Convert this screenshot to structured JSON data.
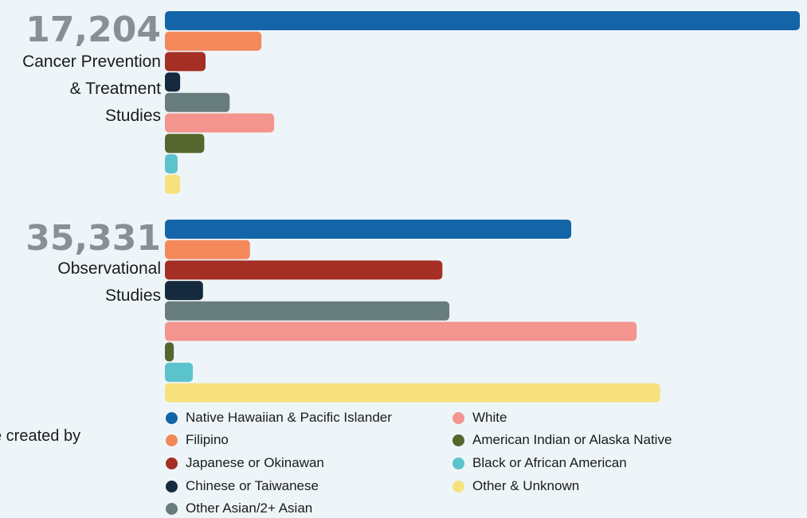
{
  "chart_data": {
    "type": "bar",
    "orientation": "horizontal",
    "series": [
      {
        "name": "Native Hawaiian & Pacific Islander",
        "color": "#1464a8"
      },
      {
        "name": "Filipino",
        "color": "#f4885a"
      },
      {
        "name": "Japanese or Okinawan",
        "color": "#a52e25"
      },
      {
        "name": "Chinese or Taiwanese",
        "color": "#152a3c"
      },
      {
        "name": "Other Asian/2+ Asian",
        "color": "#677c7d"
      },
      {
        "name": "White",
        "color": "#f4948e"
      },
      {
        "name": "American Indian or Alaska Native",
        "color": "#56662c"
      },
      {
        "name": "Black or African American",
        "color": "#5bc3cc"
      },
      {
        "name": "Other & Unknown",
        "color": "#f6e17d"
      }
    ],
    "groups": [
      {
        "total": "17,204",
        "label_lines": [
          "Cancer Prevention",
          "& Treatment",
          "Studies"
        ],
        "values": [
          1.0,
          0.152,
          0.064,
          0.024,
          0.102,
          0.172,
          0.062,
          0.02,
          0.024
        ]
      },
      {
        "total": "35,331",
        "label_lines": [
          "Observational",
          "Studies"
        ],
        "values": [
          0.64,
          0.134,
          0.437,
          0.06,
          0.448,
          0.743,
          0.014,
          0.044,
          0.78
        ]
      }
    ],
    "xlim": [
      0,
      1
    ],
    "grid": false,
    "legend_position": "bottom"
  },
  "side_note": "e created by"
}
